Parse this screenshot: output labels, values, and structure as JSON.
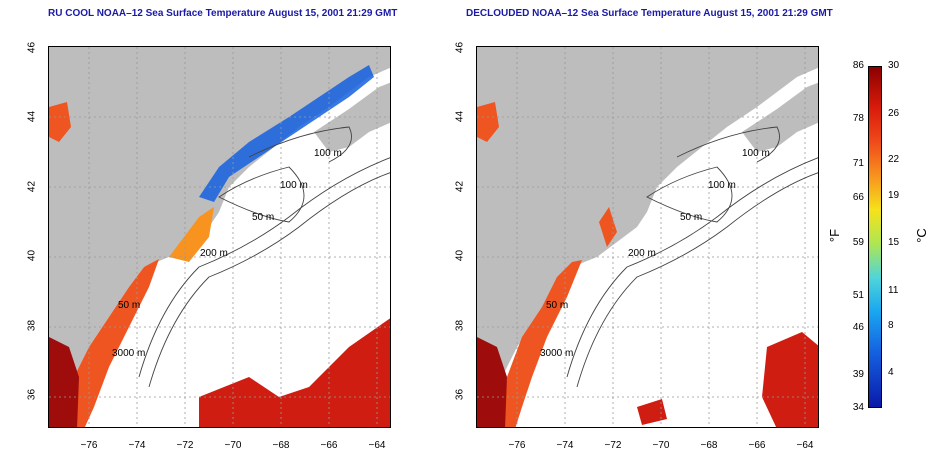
{
  "left_title": "RU COOL NOAA–12 Sea Surface Temperature August 15, 2001 21:29 GMT",
  "right_title": "DECLOUDED NOAA–12 Sea Surface Temperature August 15, 2001 21:29 GMT",
  "lat_ticks": [
    "46",
    "44",
    "42",
    "40",
    "38",
    "36"
  ],
  "lon_ticks": [
    "−76",
    "−74",
    "−72",
    "−70",
    "−68",
    "−66",
    "−64"
  ],
  "contour_labels": [
    "100 m",
    "100 m",
    "50 m",
    "200 m",
    "50 m",
    "3000 m"
  ],
  "colorbar": {
    "fahrenheit_ticks": [
      "86",
      "78",
      "71",
      "66",
      "59",
      "51",
      "46",
      "39",
      "34"
    ],
    "celsius_ticks": [
      "30",
      "26",
      "22",
      "19",
      "15",
      "11",
      "8",
      "4"
    ],
    "fahrenheit_unit": "°F",
    "celsius_unit": "°C"
  },
  "colors": {
    "land": "#bdbdbd",
    "title": "#1a1aa6",
    "warm": "#e8421a",
    "hot": "#b80f0f",
    "cold": "#1560e0"
  }
}
